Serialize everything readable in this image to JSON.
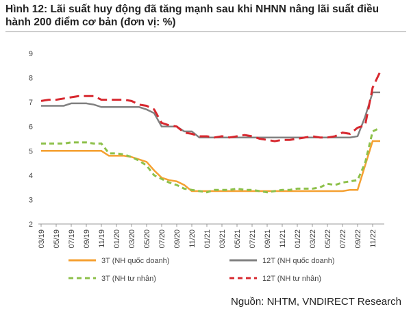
{
  "chart_data": {
    "type": "line",
    "title": "Hình 12: Lãi suất huy động đã tăng mạnh sau khi NHNN nâng lãi suất điều hành 200 điểm cơ bản (đơn vị: %)",
    "source": "Nguồn: NHTM, VNDIRECT Research",
    "categories": [
      "03/19",
      null,
      "05/19",
      null,
      "07/19",
      null,
      "09/19",
      null,
      "11/19",
      null,
      "01/20",
      null,
      "03/20",
      null,
      "05/20",
      null,
      "07/20",
      null,
      "09/20",
      null,
      "11/20",
      null,
      "01/21",
      null,
      "03/21",
      null,
      "05/21",
      null,
      "07/21",
      null,
      "09/21",
      null,
      "11/21",
      null,
      "01/22",
      null,
      "03/22",
      null,
      "05/22",
      null,
      "07/22",
      null,
      "09/22",
      null,
      "11/22",
      null
    ],
    "ylim": [
      2,
      9
    ],
    "yticks": [
      2,
      3,
      4,
      5,
      6,
      7,
      8,
      9
    ],
    "grid": false,
    "series": [
      {
        "name": "3T (NH quốc doanh)",
        "color": "#f5a031",
        "dash": "solid",
        "values": [
          5.0,
          5.0,
          5.0,
          5.0,
          5.0,
          5.0,
          5.0,
          5.0,
          5.0,
          4.8,
          4.8,
          4.8,
          4.75,
          4.65,
          4.55,
          4.2,
          3.9,
          3.8,
          3.75,
          3.6,
          3.35,
          3.35,
          3.35,
          3.35,
          3.35,
          3.35,
          3.35,
          3.35,
          3.35,
          3.35,
          3.35,
          3.35,
          3.35,
          3.35,
          3.35,
          3.35,
          3.35,
          3.35,
          3.35,
          3.35,
          3.35,
          3.4,
          3.4,
          4.4,
          5.4,
          5.4
        ]
      },
      {
        "name": "12T (NH quốc doanh)",
        "color": "#808080",
        "dash": "solid",
        "values": [
          6.85,
          6.85,
          6.85,
          6.85,
          6.95,
          6.95,
          6.95,
          6.9,
          6.8,
          6.8,
          6.8,
          6.8,
          6.8,
          6.8,
          6.7,
          6.55,
          6.0,
          6.0,
          6.0,
          5.8,
          5.8,
          5.55,
          5.55,
          5.55,
          5.55,
          5.55,
          5.55,
          5.55,
          5.55,
          5.55,
          5.55,
          5.55,
          5.55,
          5.55,
          5.55,
          5.55,
          5.55,
          5.55,
          5.55,
          5.55,
          5.55,
          5.55,
          5.6,
          6.4,
          7.4,
          7.4
        ]
      },
      {
        "name": "3T (NH tư nhân)",
        "color": "#8dc04a",
        "dash": "dashed",
        "values": [
          5.3,
          5.3,
          5.3,
          5.3,
          5.35,
          5.35,
          5.35,
          5.3,
          5.3,
          4.9,
          4.9,
          4.85,
          4.75,
          4.6,
          4.4,
          4.0,
          3.85,
          3.7,
          3.6,
          3.45,
          3.4,
          3.35,
          3.3,
          3.4,
          3.4,
          3.4,
          3.45,
          3.4,
          3.4,
          3.35,
          3.3,
          3.35,
          3.4,
          3.4,
          3.45,
          3.45,
          3.45,
          3.5,
          3.65,
          3.6,
          3.7,
          3.75,
          3.8,
          4.5,
          5.8,
          5.95
        ]
      },
      {
        "name": "12T (NH tư nhân)",
        "color": "#d7282f",
        "dash": "dashed",
        "values": [
          7.05,
          7.1,
          7.1,
          7.15,
          7.2,
          7.25,
          7.25,
          7.25,
          7.1,
          7.1,
          7.1,
          7.1,
          7.05,
          6.9,
          6.85,
          6.7,
          6.15,
          6.05,
          6.0,
          5.75,
          5.7,
          5.6,
          5.6,
          5.55,
          5.6,
          5.55,
          5.6,
          5.65,
          5.6,
          5.5,
          5.45,
          5.4,
          5.45,
          5.45,
          5.5,
          5.55,
          5.6,
          5.55,
          5.55,
          5.6,
          5.75,
          5.7,
          5.95,
          6.05,
          7.6,
          8.25
        ]
      }
    ]
  }
}
